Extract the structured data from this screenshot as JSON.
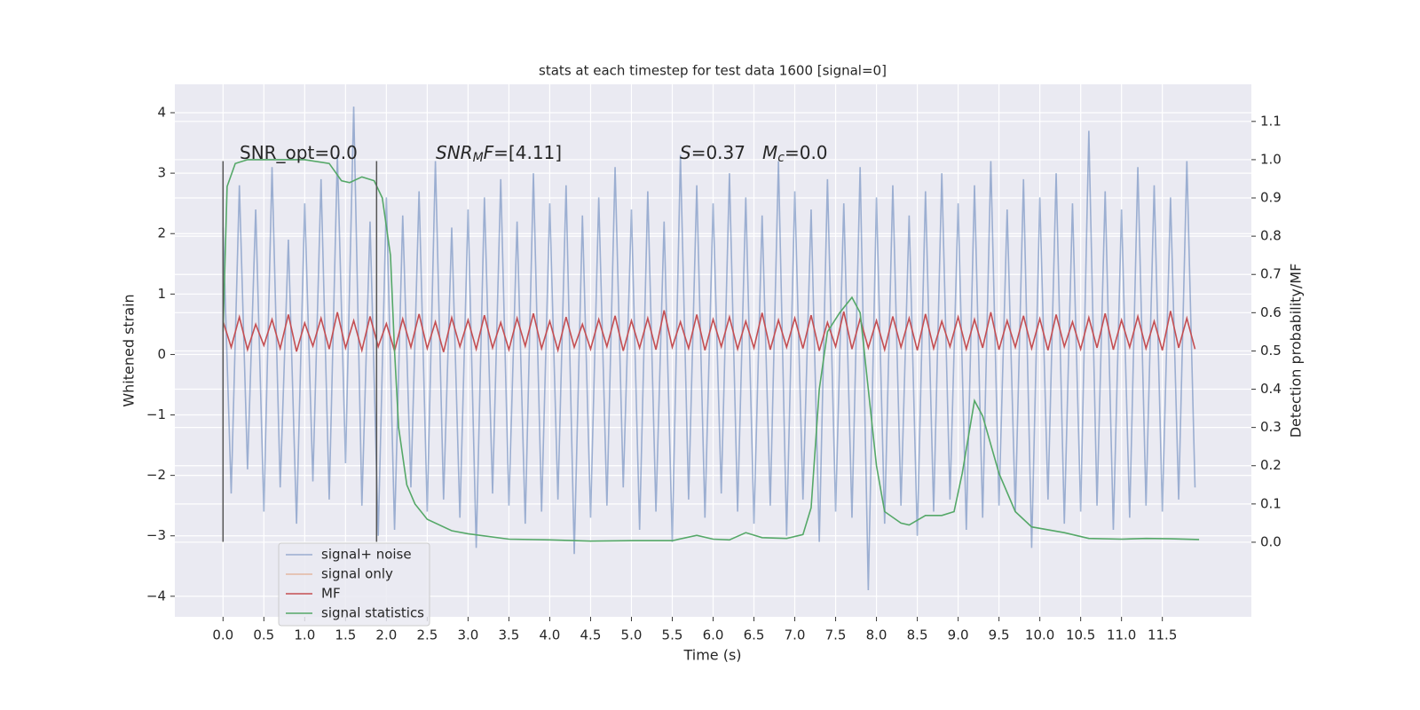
{
  "chart_data": {
    "type": "line",
    "title": "stats at each timestep for test data 1600 [signal=0]",
    "xlabel": "Time (s)",
    "ylabel": "Whitened strain",
    "y2label": "Detection probability/MF",
    "xlim": [
      -0.59,
      12.59
    ],
    "ylim": [
      -4.34,
      4.47
    ],
    "y2lim": [
      -0.195,
      1.197
    ],
    "grid": true,
    "background": "#eaeaf2",
    "xticks": [
      {
        "value": 0,
        "label": "0.0"
      },
      0.5,
      {
        "value": 1,
        "label": "1.0"
      },
      1.5,
      {
        "value": 2,
        "label": "2.0"
      },
      2.5,
      {
        "value": 3,
        "label": "3.0"
      },
      3.5,
      {
        "value": 4,
        "label": "4.0"
      },
      4.5,
      {
        "value": 5,
        "label": "5.0"
      },
      5.5,
      {
        "value": 6,
        "label": "6.0"
      },
      6.5,
      {
        "value": 7,
        "label": "7.0"
      },
      7.5,
      {
        "value": 8,
        "label": "8.0"
      },
      8.5,
      {
        "value": 9,
        "label": "9.0"
      },
      9.5,
      {
        "value": 10,
        "label": "10.0"
      },
      10.5,
      {
        "value": 11,
        "label": "11.0"
      },
      11.5
    ],
    "yticks": [
      {
        "value": -4,
        "label": "−4"
      },
      {
        "value": -3,
        "label": "−3"
      },
      {
        "value": -2,
        "label": "−2"
      },
      {
        "value": -1,
        "label": "−1"
      },
      0,
      1,
      2,
      3,
      4
    ],
    "y2ticks": [
      {
        "value": 0,
        "label": "0.0"
      },
      0.1,
      0.2,
      0.3,
      0.4,
      0.5,
      0.6,
      0.7,
      0.8,
      0.9,
      {
        "value": 1,
        "label": "1.0"
      },
      1.1
    ],
    "vlines": {
      "x": [
        0,
        1.88
      ],
      "ymin": -3.1,
      "ymax": 3.2,
      "color": "#555555"
    },
    "annotations": [
      [
        {
          "text": "SNR_opt=0.0"
        }
      ],
      [
        {
          "text": "SNR",
          "italic": true
        },
        {
          "text": "M",
          "italic": true,
          "sub": true
        },
        {
          "text": "F",
          "italic": true
        },
        {
          "text": "=[4.11]"
        }
      ],
      [
        {
          "text": "S",
          "italic": true
        },
        {
          "text": "=0.37"
        }
      ],
      [
        {
          "text": "M",
          "italic": true
        },
        {
          "text": "c",
          "italic": true,
          "sub": true
        },
        {
          "text": "=0.0"
        }
      ]
    ],
    "series": [
      {
        "name": "signal+ noise",
        "color": "#4c72b0",
        "opacity": 0.5,
        "x": [
          0,
          0.1,
          0.2,
          0.3,
          0.4,
          0.5,
          0.6,
          0.7,
          0.8,
          0.9,
          1,
          1.1,
          1.2,
          1.3,
          1.4,
          1.5,
          1.6,
          1.7,
          1.8,
          1.9,
          2,
          2.1,
          2.2,
          2.3,
          2.4,
          2.5,
          2.6,
          2.7,
          2.8,
          2.9,
          3,
          3.1,
          3.2,
          3.3,
          3.4,
          3.5,
          3.6,
          3.7,
          3.8,
          3.9,
          4,
          4.1,
          4.2,
          4.3,
          4.4,
          4.5,
          4.6,
          4.7,
          4.8,
          4.9,
          5,
          5.1,
          5.2,
          5.3,
          5.4,
          5.5,
          5.6,
          5.7,
          5.8,
          5.9,
          6,
          6.1,
          6.2,
          6.3,
          6.4,
          6.5,
          6.6,
          6.7,
          6.8,
          6.9,
          7,
          7.1,
          7.2,
          7.3,
          7.4,
          7.5,
          7.6,
          7.7,
          7.8,
          7.9,
          8,
          8.1,
          8.2,
          8.3,
          8.4,
          8.5,
          8.6,
          8.7,
          8.8,
          8.9,
          9,
          9.1,
          9.2,
          9.3,
          9.4,
          9.5,
          9.6,
          9.7,
          9.8,
          9.9,
          10,
          10.1,
          10.2,
          10.3,
          10.4,
          10.5,
          10.6,
          10.7,
          10.8,
          10.9,
          11,
          11.1,
          11.2,
          11.3,
          11.4,
          11.5,
          11.6,
          11.7,
          11.8,
          11.9
        ],
        "values": [
          2.1,
          -2.3,
          2.8,
          -1.9,
          2.4,
          -2.6,
          3.1,
          -2.2,
          1.9,
          -2.8,
          2.5,
          -2.1,
          2.9,
          -2.4,
          3.3,
          -1.8,
          4.1,
          -2.5,
          2.2,
          -3.0,
          2.6,
          -2.9,
          2.3,
          -2.2,
          2.7,
          -2.6,
          3.2,
          -2.4,
          2.1,
          -2.7,
          2.4,
          -3.2,
          2.6,
          -2.3,
          2.9,
          -2.5,
          2.2,
          -2.8,
          3.0,
          -2.6,
          2.5,
          -2.4,
          2.8,
          -3.3,
          2.3,
          -2.7,
          2.6,
          -2.5,
          3.1,
          -2.2,
          2.4,
          -2.9,
          2.7,
          -2.6,
          2.2,
          -3.1,
          3.3,
          -2.4,
          2.8,
          -2.7,
          2.5,
          -2.3,
          3.0,
          -2.6,
          2.6,
          -2.8,
          2.3,
          -2.5,
          3.2,
          -3.0,
          2.7,
          -2.4,
          2.4,
          -3.1,
          2.9,
          -2.6,
          2.5,
          -2.7,
          3.1,
          -3.9,
          2.6,
          -2.8,
          2.8,
          -2.5,
          2.3,
          -3.0,
          2.7,
          -2.6,
          3.0,
          -2.4,
          2.5,
          -2.9,
          2.8,
          -2.7,
          3.2,
          -2.5,
          2.4,
          -2.6,
          2.9,
          -3.2,
          2.6,
          -2.4,
          3.0,
          -2.8,
          2.5,
          -2.6,
          3.7,
          -2.5,
          2.7,
          -2.9,
          2.4,
          -2.7,
          3.1,
          -2.5,
          2.8,
          -2.6,
          2.6,
          -2.4,
          3.2,
          -2.2
        ]
      },
      {
        "name": "signal only",
        "color": "#dd8452",
        "opacity": 0.5,
        "x": [],
        "values": []
      },
      {
        "name": "MF",
        "color": "#c44e52",
        "opacity": 1,
        "x": [
          0,
          0.1,
          0.2,
          0.3,
          0.4,
          0.5,
          0.6,
          0.7,
          0.8,
          0.9,
          1,
          1.1,
          1.2,
          1.3,
          1.4,
          1.5,
          1.6,
          1.7,
          1.8,
          1.9,
          2,
          2.1,
          2.2,
          2.3,
          2.4,
          2.5,
          2.6,
          2.7,
          2.8,
          2.9,
          3,
          3.1,
          3.2,
          3.3,
          3.4,
          3.5,
          3.6,
          3.7,
          3.8,
          3.9,
          4,
          4.1,
          4.2,
          4.3,
          4.4,
          4.5,
          4.6,
          4.7,
          4.8,
          4.9,
          5,
          5.1,
          5.2,
          5.3,
          5.4,
          5.5,
          5.6,
          5.7,
          5.8,
          5.9,
          6,
          6.1,
          6.2,
          6.3,
          6.4,
          6.5,
          6.6,
          6.7,
          6.8,
          6.9,
          7,
          7.1,
          7.2,
          7.3,
          7.4,
          7.5,
          7.6,
          7.7,
          7.8,
          7.9,
          8,
          8.1,
          8.2,
          8.3,
          8.4,
          8.5,
          8.6,
          8.7,
          8.8,
          8.9,
          9,
          9.1,
          9.2,
          9.3,
          9.4,
          9.5,
          9.6,
          9.7,
          9.8,
          9.9,
          10,
          10.1,
          10.2,
          10.3,
          10.4,
          10.5,
          10.6,
          10.7,
          10.8,
          10.9,
          11,
          11.1,
          11.2,
          11.3,
          11.4,
          11.5,
          11.6,
          11.7,
          11.8,
          11.9
        ],
        "values": [
          0.55,
          0.12,
          0.62,
          0.08,
          0.5,
          0.15,
          0.58,
          0.1,
          0.66,
          0.05,
          0.52,
          0.14,
          0.6,
          0.09,
          0.7,
          0.11,
          0.56,
          0.07,
          0.63,
          0.13,
          0.51,
          0.06,
          0.59,
          0.12,
          0.67,
          0.1,
          0.54,
          0.04,
          0.61,
          0.13,
          0.57,
          0.09,
          0.65,
          0.11,
          0.53,
          0.08,
          0.6,
          0.14,
          0.68,
          0.1,
          0.55,
          0.07,
          0.62,
          0.12,
          0.5,
          0.09,
          0.58,
          0.13,
          0.64,
          0.06,
          0.56,
          0.11,
          0.6,
          0.08,
          0.73,
          0.12,
          0.54,
          0.1,
          0.66,
          0.07,
          0.58,
          0.13,
          0.62,
          0.09,
          0.55,
          0.11,
          0.69,
          0.08,
          0.57,
          0.12,
          0.6,
          0.1,
          0.65,
          0.06,
          0.53,
          0.13,
          0.71,
          0.09,
          0.59,
          0.11,
          0.56,
          0.08,
          0.63,
          0.12,
          0.6,
          0.07,
          0.67,
          0.1,
          0.55,
          0.13,
          0.62,
          0.09,
          0.58,
          0.11,
          0.7,
          0.08,
          0.56,
          0.12,
          0.64,
          0.1,
          0.59,
          0.07,
          0.66,
          0.13,
          0.54,
          0.09,
          0.61,
          0.11,
          0.68,
          0.08,
          0.57,
          0.12,
          0.63,
          0.1,
          0.55,
          0.07,
          0.72,
          0.11,
          0.6,
          0.09
        ]
      },
      {
        "name": "signal statistics",
        "color": "#55a868",
        "opacity": 1,
        "axis": "y2",
        "x": [
          0,
          0.05,
          0.15,
          0.3,
          1.0,
          1.3,
          1.45,
          1.55,
          1.7,
          1.85,
          1.95,
          2.05,
          2.1,
          2.15,
          2.25,
          2.35,
          2.5,
          2.8,
          3.0,
          3.5,
          4.0,
          4.5,
          5.0,
          5.5,
          5.8,
          6.0,
          6.2,
          6.4,
          6.6,
          6.9,
          7.1,
          7.2,
          7.3,
          7.4,
          7.55,
          7.7,
          7.8,
          7.9,
          8.0,
          8.1,
          8.3,
          8.4,
          8.6,
          8.8,
          8.95,
          9.05,
          9.2,
          9.3,
          9.5,
          9.7,
          9.9,
          10.3,
          10.6,
          11.0,
          11.3,
          11.6,
          11.95
        ],
        "values": [
          0.55,
          0.93,
          0.99,
          1.0,
          1.0,
          0.99,
          0.945,
          0.94,
          0.955,
          0.945,
          0.9,
          0.75,
          0.5,
          0.3,
          0.15,
          0.1,
          0.06,
          0.03,
          0.022,
          0.008,
          0.006,
          0.003,
          0.004,
          0.004,
          0.018,
          0.008,
          0.006,
          0.025,
          0.012,
          0.01,
          0.02,
          0.09,
          0.4,
          0.55,
          0.6,
          0.64,
          0.6,
          0.4,
          0.2,
          0.08,
          0.05,
          0.045,
          0.07,
          0.07,
          0.08,
          0.18,
          0.37,
          0.33,
          0.18,
          0.08,
          0.04,
          0.025,
          0.01,
          0.008,
          0.01,
          0.009,
          0.007
        ]
      }
    ]
  }
}
